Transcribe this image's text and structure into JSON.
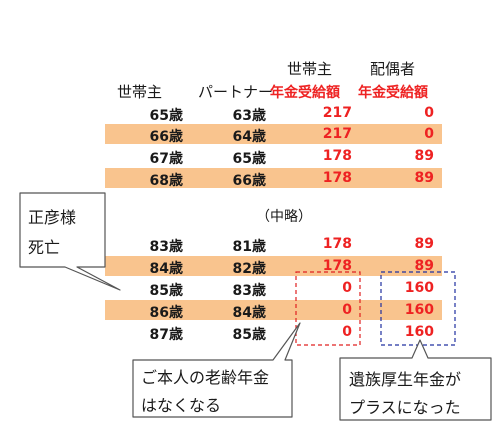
{
  "headers": {
    "top_head": "世帯主",
    "top_spouse": "配偶者",
    "col_head": "世帯主",
    "col_partner": "パートナー",
    "pension_head": "年金受給額",
    "pension_spouse": "年金受給額"
  },
  "rows_top": [
    {
      "head_age": "65歳",
      "partner_age": "63歳",
      "head_pension": "217",
      "spouse_pension": "0"
    },
    {
      "head_age": "66歳",
      "partner_age": "64歳",
      "head_pension": "217",
      "spouse_pension": "0"
    },
    {
      "head_age": "67歳",
      "partner_age": "65歳",
      "head_pension": "178",
      "spouse_pension": "89"
    },
    {
      "head_age": "68歳",
      "partner_age": "66歳",
      "head_pension": "178",
      "spouse_pension": "89"
    }
  ],
  "omitted_label": "（中略）",
  "rows_bottom": [
    {
      "head_age": "83歳",
      "partner_age": "81歳",
      "head_pension": "178",
      "spouse_pension": "89"
    },
    {
      "head_age": "84歳",
      "partner_age": "82歳",
      "head_pension": "178",
      "spouse_pension": "89"
    },
    {
      "head_age": "85歳",
      "partner_age": "83歳",
      "head_pension": "0",
      "spouse_pension": "160"
    },
    {
      "head_age": "86歳",
      "partner_age": "84歳",
      "head_pension": "0",
      "spouse_pension": "160"
    },
    {
      "head_age": "87歳",
      "partner_age": "85歳",
      "head_pension": "0",
      "spouse_pension": "160"
    }
  ],
  "callouts": {
    "death_line1": "正彦様",
    "death_line2": "死亡",
    "own_pension_line1": "ご本人の老齢年金",
    "own_pension_line2": "はなくなる",
    "survivor_line1": "遺族厚生年金が",
    "survivor_line2": "プラスになった"
  },
  "colors": {
    "band": "#f9c48e",
    "red_text": "#ee2222",
    "red_dashed_box": "#e02020",
    "blue_dashed_box": "#2030a0"
  }
}
